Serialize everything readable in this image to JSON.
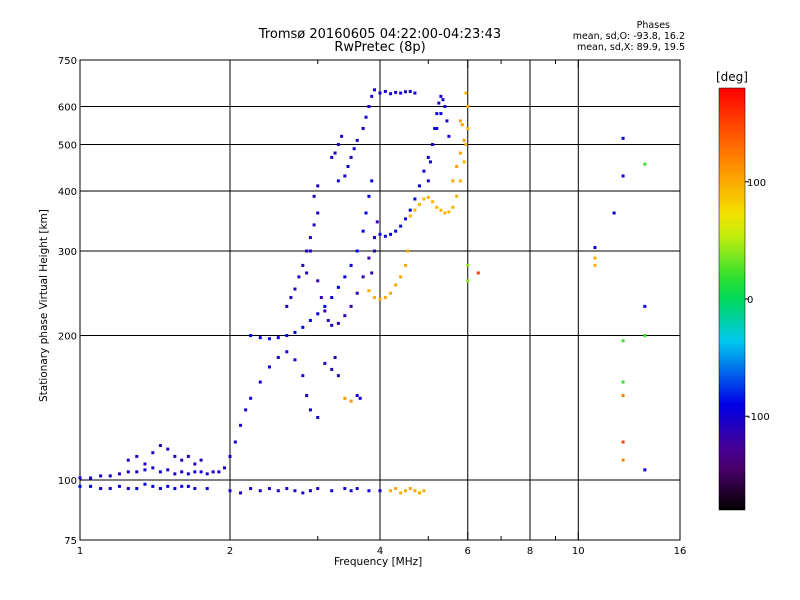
{
  "title_line1": "Tromsø 20160605 04:22:00-04:23:43",
  "title_line2": "RwPretec (8p)",
  "phase_box": {
    "heading": "Phases",
    "o_line": "mean, sd,O: -93.8, 16.2",
    "x_line": "mean, sd,X:  89.9, 19.5"
  },
  "colorbar": {
    "label": "[deg]",
    "ticks": [
      {
        "value": 100,
        "label": "100"
      },
      {
        "value": 0,
        "label": "0"
      },
      {
        "value": -100,
        "label": "-100"
      }
    ],
    "range": [
      -180,
      180
    ]
  },
  "chart_data": {
    "type": "scatter",
    "xlabel": "Frequency [MHz]",
    "ylabel": "Stationary phase Virtual Height [km]",
    "xscale": "log",
    "yscale": "log",
    "xlim": [
      1,
      16
    ],
    "ylim": [
      75,
      750
    ],
    "x_ticks": [
      {
        "value": 1,
        "label": "1"
      },
      {
        "value": 2,
        "label": "2"
      },
      {
        "value": 4,
        "label": "4"
      },
      {
        "value": 6,
        "label": "6"
      },
      {
        "value": 8,
        "label": "8"
      },
      {
        "value": 10,
        "label": "10"
      },
      {
        "value": 16,
        "label": "16"
      }
    ],
    "x_minor": [
      3,
      5,
      7,
      9
    ],
    "x_grid": [
      2,
      4,
      6,
      8,
      10
    ],
    "y_ticks": [
      {
        "value": 75,
        "label": "75"
      },
      {
        "value": 100,
        "label": "100"
      },
      {
        "value": 200,
        "label": "200"
      },
      {
        "value": 300,
        "label": "300"
      },
      {
        "value": 400,
        "label": "400"
      },
      {
        "value": 500,
        "label": "500"
      },
      {
        "value": 600,
        "label": "600"
      },
      {
        "value": 750,
        "label": "750"
      }
    ],
    "y_grid": [
      100,
      200,
      300,
      400,
      500,
      600
    ],
    "grid": true,
    "series": [
      {
        "phase": -95,
        "points": [
          [
            1.0,
            97
          ],
          [
            1.05,
            97
          ],
          [
            1.1,
            96
          ],
          [
            1.15,
            96
          ],
          [
            1.2,
            97
          ],
          [
            1.25,
            96
          ],
          [
            1.3,
            96
          ],
          [
            1.35,
            98
          ],
          [
            1.4,
            97
          ],
          [
            1.45,
            96
          ],
          [
            1.5,
            97
          ],
          [
            1.55,
            96
          ],
          [
            1.6,
            97
          ],
          [
            1.65,
            97
          ],
          [
            1.7,
            96
          ],
          [
            1.8,
            96
          ]
        ]
      },
      {
        "phase": -100,
        "points": [
          [
            1.0,
            101
          ],
          [
            1.05,
            101
          ],
          [
            1.1,
            102
          ],
          [
            1.15,
            102
          ],
          [
            1.2,
            103
          ],
          [
            1.25,
            104
          ],
          [
            1.3,
            104
          ],
          [
            1.35,
            105
          ],
          [
            1.4,
            106
          ],
          [
            1.45,
            104
          ],
          [
            1.5,
            105
          ],
          [
            1.55,
            103
          ],
          [
            1.6,
            104
          ],
          [
            1.65,
            103
          ],
          [
            1.7,
            104
          ],
          [
            1.75,
            104
          ],
          [
            1.8,
            103
          ],
          [
            1.85,
            104
          ],
          [
            1.9,
            104
          ],
          [
            1.95,
            106
          ],
          [
            2.0,
            112
          ],
          [
            2.05,
            120
          ],
          [
            2.1,
            130
          ],
          [
            2.15,
            140
          ],
          [
            2.2,
            148
          ],
          [
            2.3,
            160
          ],
          [
            2.4,
            172
          ],
          [
            2.5,
            180
          ],
          [
            2.6,
            185
          ],
          [
            2.7,
            178
          ],
          [
            2.8,
            165
          ],
          [
            2.85,
            150
          ],
          [
            2.9,
            140
          ],
          [
            3.0,
            135
          ]
        ]
      },
      {
        "phase": -110,
        "points": [
          [
            1.25,
            110
          ],
          [
            1.3,
            112
          ],
          [
            1.35,
            108
          ],
          [
            1.4,
            114
          ],
          [
            1.45,
            118
          ],
          [
            1.5,
            116
          ],
          [
            1.55,
            112
          ],
          [
            1.6,
            110
          ],
          [
            1.65,
            112
          ],
          [
            1.7,
            108
          ],
          [
            1.75,
            110
          ]
        ]
      },
      {
        "phase": -90,
        "points": [
          [
            2.2,
            200
          ],
          [
            2.3,
            198
          ],
          [
            2.4,
            197
          ],
          [
            2.5,
            198
          ],
          [
            2.6,
            200
          ],
          [
            2.7,
            203
          ],
          [
            2.8,
            208
          ],
          [
            2.9,
            215
          ],
          [
            3.0,
            222
          ],
          [
            3.1,
            230
          ],
          [
            3.2,
            240
          ],
          [
            3.3,
            252
          ],
          [
            3.4,
            265
          ],
          [
            3.5,
            280
          ],
          [
            3.6,
            300
          ],
          [
            3.7,
            330
          ],
          [
            3.75,
            360
          ],
          [
            3.8,
            390
          ],
          [
            3.85,
            420
          ]
        ]
      },
      {
        "phase": -105,
        "points": [
          [
            2.6,
            230
          ],
          [
            2.65,
            240
          ],
          [
            2.7,
            250
          ],
          [
            2.75,
            265
          ],
          [
            2.8,
            280
          ],
          [
            2.85,
            300
          ],
          [
            2.9,
            320
          ],
          [
            2.95,
            340
          ],
          [
            3.0,
            360
          ],
          [
            2.95,
            390
          ],
          [
            3.0,
            410
          ],
          [
            2.9,
            300
          ],
          [
            2.85,
            270
          ]
        ]
      },
      {
        "phase": -115,
        "points": [
          [
            3.0,
            260
          ],
          [
            3.05,
            240
          ],
          [
            3.1,
            225
          ],
          [
            3.15,
            215
          ],
          [
            3.2,
            210
          ],
          [
            3.3,
            212
          ],
          [
            3.4,
            220
          ],
          [
            3.5,
            230
          ],
          [
            3.6,
            245
          ],
          [
            3.7,
            265
          ],
          [
            3.8,
            290
          ],
          [
            3.9,
            320
          ],
          [
            3.95,
            345
          ],
          [
            3.9,
            300
          ],
          [
            3.85,
            270
          ]
        ]
      },
      {
        "phase": -100,
        "points": [
          [
            3.3,
            420
          ],
          [
            3.4,
            430
          ],
          [
            3.45,
            450
          ],
          [
            3.5,
            470
          ],
          [
            3.55,
            490
          ],
          [
            3.6,
            510
          ],
          [
            3.7,
            540
          ],
          [
            3.75,
            570
          ],
          [
            3.8,
            600
          ],
          [
            3.85,
            630
          ],
          [
            3.9,
            650
          ]
        ]
      },
      {
        "phase": -105,
        "points": [
          [
            3.2,
            470
          ],
          [
            3.25,
            480
          ],
          [
            3.3,
            500
          ],
          [
            3.35,
            520
          ]
        ]
      },
      {
        "phase": -100,
        "points": [
          [
            4.0,
            640
          ],
          [
            4.1,
            645
          ],
          [
            4.2,
            638
          ],
          [
            4.3,
            642
          ],
          [
            4.4,
            640
          ],
          [
            4.5,
            644
          ],
          [
            4.6,
            645
          ],
          [
            4.7,
            640
          ]
        ]
      },
      {
        "phase": -95,
        "points": [
          [
            3.9,
            320
          ],
          [
            4.0,
            325
          ],
          [
            4.1,
            322
          ],
          [
            4.2,
            325
          ],
          [
            4.3,
            330
          ],
          [
            4.4,
            338
          ],
          [
            4.5,
            350
          ],
          [
            4.6,
            365
          ],
          [
            4.7,
            385
          ],
          [
            4.8,
            410
          ],
          [
            4.9,
            440
          ],
          [
            5.0,
            470
          ],
          [
            5.1,
            500
          ],
          [
            5.2,
            540
          ],
          [
            5.3,
            580
          ],
          [
            5.35,
            620
          ]
        ]
      },
      {
        "phase": -100,
        "points": [
          [
            5.0,
            420
          ],
          [
            5.05,
            460
          ],
          [
            5.1,
            500
          ],
          [
            5.15,
            540
          ],
          [
            5.2,
            580
          ],
          [
            5.25,
            610
          ],
          [
            5.3,
            630
          ],
          [
            5.4,
            600
          ],
          [
            5.45,
            560
          ],
          [
            5.5,
            520
          ]
        ]
      },
      {
        "phase": 100,
        "points": [
          [
            3.8,
            248
          ],
          [
            3.9,
            240
          ],
          [
            4.0,
            238
          ],
          [
            4.1,
            240
          ],
          [
            4.2,
            245
          ],
          [
            4.3,
            255
          ],
          [
            4.4,
            265
          ],
          [
            4.5,
            280
          ],
          [
            4.55,
            300
          ]
        ]
      },
      {
        "phase": 95,
        "points": [
          [
            4.6,
            355
          ],
          [
            4.7,
            365
          ],
          [
            4.8,
            375
          ],
          [
            4.9,
            385
          ],
          [
            5.0,
            388
          ],
          [
            5.1,
            380
          ],
          [
            5.2,
            370
          ],
          [
            5.3,
            365
          ],
          [
            5.4,
            360
          ],
          [
            5.5,
            362
          ],
          [
            5.6,
            370
          ],
          [
            5.7,
            390
          ],
          [
            5.8,
            420
          ],
          [
            5.9,
            460
          ],
          [
            5.95,
            500
          ],
          [
            6.0,
            540
          ],
          [
            6.0,
            600
          ],
          [
            5.95,
            640
          ]
        ]
      },
      {
        "phase": 105,
        "points": [
          [
            5.6,
            420
          ],
          [
            5.7,
            450
          ],
          [
            5.8,
            480
          ],
          [
            5.9,
            510
          ],
          [
            5.85,
            550
          ],
          [
            5.8,
            560
          ]
        ]
      },
      {
        "phase": -100,
        "points": [
          [
            2.0,
            95
          ],
          [
            2.1,
            94
          ],
          [
            2.2,
            96
          ],
          [
            2.3,
            95
          ],
          [
            2.4,
            96
          ],
          [
            2.5,
            95
          ],
          [
            2.6,
            96
          ],
          [
            2.7,
            95
          ],
          [
            2.8,
            94
          ],
          [
            2.9,
            95
          ],
          [
            3.0,
            96
          ],
          [
            3.2,
            95
          ],
          [
            3.4,
            96
          ],
          [
            3.5,
            95
          ],
          [
            3.6,
            96
          ],
          [
            3.8,
            95
          ],
          [
            4.0,
            95
          ]
        ]
      },
      {
        "phase": 100,
        "points": [
          [
            4.2,
            95
          ],
          [
            4.3,
            96
          ],
          [
            4.4,
            94
          ],
          [
            4.5,
            95
          ],
          [
            4.6,
            96
          ],
          [
            4.7,
            95
          ],
          [
            4.8,
            94
          ],
          [
            4.9,
            95
          ]
        ]
      },
      {
        "phase": -110,
        "points": [
          [
            3.1,
            175
          ],
          [
            3.2,
            170
          ],
          [
            3.3,
            165
          ],
          [
            3.25,
            180
          ]
        ]
      },
      {
        "phase": 110,
        "points": [
          [
            3.4,
            148
          ],
          [
            3.5,
            146
          ]
        ]
      },
      {
        "phase": -100,
        "points": [
          [
            3.6,
            150
          ],
          [
            3.65,
            148
          ]
        ]
      },
      {
        "phase": 40,
        "points": [
          [
            6.0,
            280
          ],
          [
            6.0,
            260
          ]
        ]
      },
      {
        "phase": 95,
        "points": [
          [
            10.8,
            290
          ],
          [
            10.8,
            280
          ]
        ]
      },
      {
        "phase": -95,
        "points": [
          [
            10.8,
            305
          ],
          [
            12.3,
            430
          ],
          [
            12.3,
            515
          ],
          [
            13.6,
            230
          ],
          [
            13.6,
            105
          ],
          [
            11.8,
            360
          ]
        ]
      },
      {
        "phase": 20,
        "points": [
          [
            12.3,
            195
          ],
          [
            13.6,
            455
          ],
          [
            13.6,
            200
          ],
          [
            12.3,
            160
          ]
        ]
      },
      {
        "phase": 150,
        "points": [
          [
            12.3,
            120
          ],
          [
            6.3,
            270
          ]
        ]
      },
      {
        "phase": 120,
        "points": [
          [
            12.3,
            110
          ],
          [
            12.3,
            150
          ]
        ]
      }
    ]
  }
}
